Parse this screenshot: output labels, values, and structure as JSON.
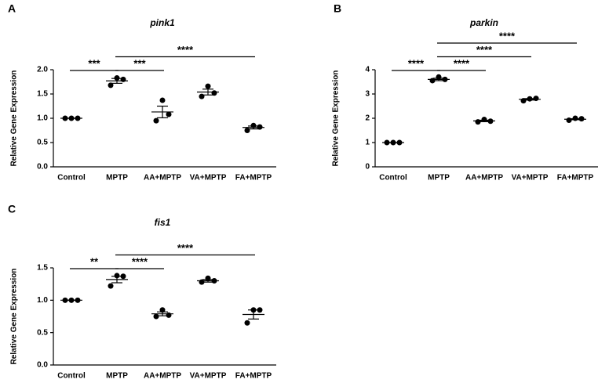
{
  "chart_data": [
    {
      "type": "dot",
      "panel": "A",
      "title": "pink1",
      "ylabel": "Relative Gene Expression",
      "categories": [
        "Control",
        "MPTP",
        "AA+MPTP",
        "VA+MPTP",
        "FA+MPTP"
      ],
      "points": [
        [
          1.0,
          1.0,
          1.0
        ],
        [
          1.68,
          1.83,
          1.8
        ],
        [
          0.95,
          1.37,
          1.08
        ],
        [
          1.45,
          1.66,
          1.52
        ],
        [
          0.75,
          0.85,
          0.82
        ]
      ],
      "means": [
        1.0,
        1.77,
        1.13,
        1.54,
        0.81
      ],
      "sems": [
        0,
        0.05,
        0.12,
        0.06,
        0.03
      ],
      "ylim": [
        0,
        2.0
      ],
      "yticks": [
        {
          "value": 0,
          "label": "0.0"
        },
        0.5,
        {
          "value": 1,
          "label": "1.0"
        },
        1.5,
        {
          "value": 2,
          "label": "2.0"
        }
      ],
      "color": "#000000",
      "comparisons": [
        {
          "groups": [
            "Control",
            "MPTP"
          ],
          "label": "***"
        },
        {
          "groups": [
            "MPTP",
            "AA+MPTP"
          ],
          "label": "***"
        },
        {
          "groups": [
            "MPTP",
            "FA+MPTP"
          ],
          "label": "****"
        }
      ]
    },
    {
      "type": "dot",
      "panel": "B",
      "title": "parkin",
      "ylabel": "Relative Gene Expression",
      "categories": [
        "Control",
        "MPTP",
        "AA+MPTP",
        "VA+MPTP",
        "FA+MPTP"
      ],
      "points": [
        [
          1.0,
          1.0,
          1.0
        ],
        [
          3.55,
          3.7,
          3.6
        ],
        [
          1.85,
          1.95,
          1.88
        ],
        [
          2.72,
          2.8,
          2.82
        ],
        [
          1.92,
          2.0,
          1.98
        ]
      ],
      "means": [
        1.0,
        3.6,
        1.89,
        2.78,
        1.96
      ],
      "sems": [
        0,
        0.05,
        0.03,
        0.03,
        0.02
      ],
      "ylim": [
        0,
        4
      ],
      "yticks": [
        0,
        1,
        2,
        3,
        4
      ],
      "color": "#000000",
      "comparisons": [
        {
          "groups": [
            "Control",
            "MPTP"
          ],
          "label": "****"
        },
        {
          "groups": [
            "MPTP",
            "AA+MPTP"
          ],
          "label": "****"
        },
        {
          "groups": [
            "MPTP",
            "VA+MPTP"
          ],
          "label": "****"
        },
        {
          "groups": [
            "MPTP",
            "FA+MPTP"
          ],
          "label": "****"
        }
      ]
    },
    {
      "type": "dot",
      "panel": "C",
      "title": "fis1",
      "ylabel": "Relative Gene Expression",
      "categories": [
        "Control",
        "MPTP",
        "AA+MPTP",
        "VA+MPTP",
        "FA+MPTP"
      ],
      "points": [
        [
          1.0,
          1.0,
          1.0
        ],
        [
          1.22,
          1.38,
          1.37
        ],
        [
          0.75,
          0.85,
          0.77
        ],
        [
          1.28,
          1.34,
          1.3
        ],
        [
          0.65,
          0.85,
          0.85
        ]
      ],
      "means": [
        1.0,
        1.32,
        0.79,
        1.3,
        0.78
      ],
      "sems": [
        0,
        0.05,
        0.03,
        0.02,
        0.07
      ],
      "ylim": [
        0,
        1.5
      ],
      "yticks": [
        {
          "value": 0,
          "label": "0.0"
        },
        0.5,
        {
          "value": 1,
          "label": "1.0"
        },
        1.5
      ],
      "color": "#000000",
      "comparisons": [
        {
          "groups": [
            "Control",
            "MPTP"
          ],
          "label": "**"
        },
        {
          "groups": [
            "MPTP",
            "AA+MPTP"
          ],
          "label": "****"
        },
        {
          "groups": [
            "MPTP",
            "FA+MPTP"
          ],
          "label": "****"
        }
      ]
    }
  ]
}
